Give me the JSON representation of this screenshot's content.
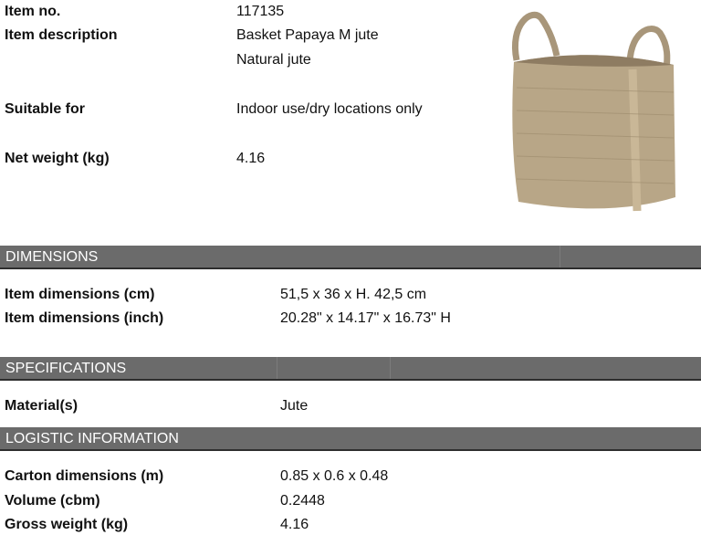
{
  "item": {
    "item_no_label": "Item no.",
    "item_no": "117135",
    "description_label": "Item description",
    "description_line1": "Basket Papaya M jute",
    "description_line2": "Natural jute",
    "suitable_label": "Suitable for",
    "suitable": "Indoor use/dry locations only",
    "net_weight_label": "Net weight (kg)",
    "net_weight": "4.16"
  },
  "dimensions": {
    "header": "DIMENSIONS",
    "cm_label": "Item dimensions (cm)",
    "cm": "51,5 x 36 x H. 42,5 cm",
    "inch_label": "Item dimensions (inch)",
    "inch": "20.28\" x 14.17\" x 16.73\" H"
  },
  "specifications": {
    "header": "SPECIFICATIONS",
    "material_label": "Material(s)",
    "material": "Jute"
  },
  "logistic": {
    "header": "LOGISTIC INFORMATION",
    "carton_label": "Carton dimensions (m)",
    "carton": "0.85 x 0.6 x 0.48",
    "volume_label": "Volume (cbm)",
    "volume": "0.2448",
    "gross_label": "Gross weight (kg)",
    "gross": "4.16"
  },
  "colors": {
    "header_bar": "#6b6b6b",
    "jute": "#b8a687"
  }
}
